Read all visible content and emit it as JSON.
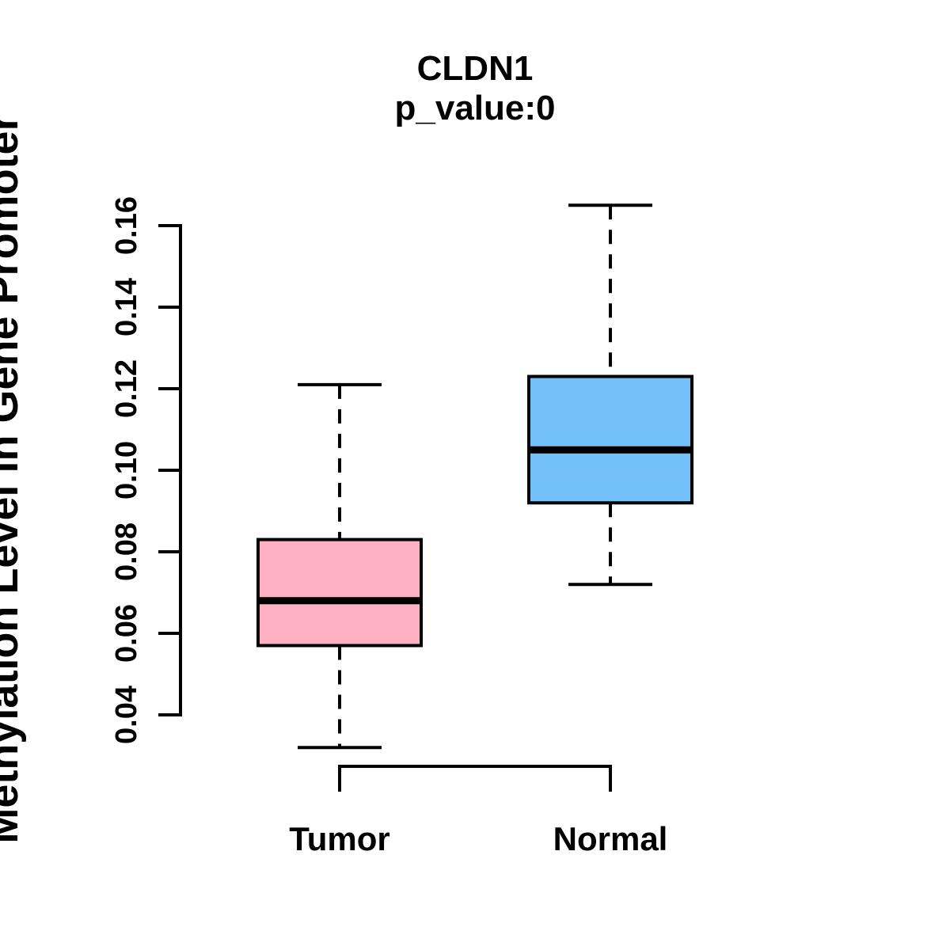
{
  "title": "CLDN1",
  "subtitle": "p_value:0",
  "y_axis_label": "Methylation Level in Gene Promoter",
  "colors": {
    "tumor_fill": "#FFB1C1",
    "normal_fill": "#74C0F8",
    "line": "#000000",
    "background": "#FFFFFF"
  },
  "chart_data": {
    "type": "boxplot",
    "title": "CLDN1",
    "subtitle": "p_value:0",
    "ylabel": "Methylation Level in Gene Promoter",
    "xlabel": "",
    "categories": [
      "Tumor",
      "Normal"
    ],
    "y_ticks": [
      0.04,
      0.06,
      0.08,
      0.1,
      0.12,
      0.14,
      0.16
    ],
    "y_tick_labels": [
      "0.04",
      "0.06",
      "0.08",
      "0.10",
      "0.12",
      "0.14",
      "0.16"
    ],
    "ylim": [
      0.032,
      0.166
    ],
    "grid": false,
    "legend": "none",
    "whisker_style": "dashed",
    "series": [
      {
        "name": "Tumor",
        "fill": "#FFB1C1",
        "lower_whisker": 0.032,
        "q1": 0.057,
        "median": 0.068,
        "q3": 0.083,
        "upper_whisker": 0.121
      },
      {
        "name": "Normal",
        "fill": "#74C0F8",
        "lower_whisker": 0.072,
        "q1": 0.092,
        "median": 0.105,
        "q3": 0.123,
        "upper_whisker": 0.165
      }
    ]
  }
}
